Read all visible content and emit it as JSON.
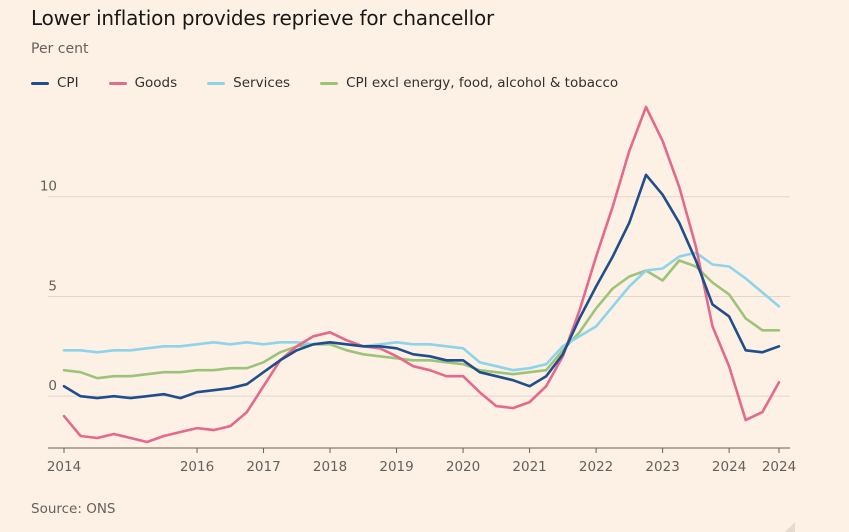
{
  "chart_data": {
    "type": "line",
    "title": "Lower inflation provides reprieve for chancellor",
    "subtitle": "Per cent",
    "source": "Source: ONS",
    "x_start": "2014-01",
    "x_end": "2024-10",
    "xticks": [
      "2014",
      "2016",
      "2017",
      "2018",
      "2019",
      "2020",
      "2021",
      "2022",
      "2023",
      "2024",
      "2024"
    ],
    "xtick_values": [
      "2014-01",
      "2016-01",
      "2017-01",
      "2018-01",
      "2019-01",
      "2020-01",
      "2021-01",
      "2022-01",
      "2023-01",
      "2024-01",
      "2024-10"
    ],
    "yticks": [
      0,
      5,
      10
    ],
    "ylim": [
      -2.6,
      14.6
    ],
    "series": [
      {
        "name": "CPI",
        "color": "#1f4e8a",
        "points": [
          [
            "2014-01",
            0.5
          ],
          [
            "2014-04",
            0.0
          ],
          [
            "2014-07",
            -0.1
          ],
          [
            "2014-10",
            0.0
          ],
          [
            "2015-01",
            -0.1
          ],
          [
            "2015-04",
            0.0
          ],
          [
            "2015-07",
            0.1
          ],
          [
            "2015-10",
            -0.1
          ],
          [
            "2016-01",
            0.2
          ],
          [
            "2016-04",
            0.3
          ],
          [
            "2016-07",
            0.4
          ],
          [
            "2016-10",
            0.6
          ],
          [
            "2017-01",
            1.2
          ],
          [
            "2017-04",
            1.8
          ],
          [
            "2017-07",
            2.3
          ],
          [
            "2017-10",
            2.6
          ],
          [
            "2018-01",
            2.7
          ],
          [
            "2018-04",
            2.6
          ],
          [
            "2018-07",
            2.5
          ],
          [
            "2018-10",
            2.5
          ],
          [
            "2019-01",
            2.4
          ],
          [
            "2019-04",
            2.1
          ],
          [
            "2019-07",
            2.0
          ],
          [
            "2019-10",
            1.8
          ],
          [
            "2020-01",
            1.8
          ],
          [
            "2020-04",
            1.2
          ],
          [
            "2020-07",
            1.0
          ],
          [
            "2020-10",
            0.8
          ],
          [
            "2021-01",
            0.5
          ],
          [
            "2021-04",
            1.0
          ],
          [
            "2021-07",
            2.1
          ],
          [
            "2021-10",
            3.9
          ],
          [
            "2022-01",
            5.5
          ],
          [
            "2022-04",
            7.0
          ],
          [
            "2022-07",
            8.7
          ],
          [
            "2022-10",
            11.1
          ],
          [
            "2023-01",
            10.1
          ],
          [
            "2023-04",
            8.7
          ],
          [
            "2023-07",
            6.8
          ],
          [
            "2023-10",
            4.6
          ],
          [
            "2024-01",
            4.0
          ],
          [
            "2024-04",
            2.3
          ],
          [
            "2024-07",
            2.2
          ],
          [
            "2024-10",
            2.5
          ]
        ]
      },
      {
        "name": "Goods",
        "color": "#e3698d",
        "points": [
          [
            "2014-01",
            -1.0
          ],
          [
            "2014-04",
            -2.0
          ],
          [
            "2014-07",
            -2.1
          ],
          [
            "2014-10",
            -1.9
          ],
          [
            "2015-01",
            -2.1
          ],
          [
            "2015-04",
            -2.3
          ],
          [
            "2015-07",
            -2.0
          ],
          [
            "2015-10",
            -1.8
          ],
          [
            "2016-01",
            -1.6
          ],
          [
            "2016-04",
            -1.7
          ],
          [
            "2016-07",
            -1.5
          ],
          [
            "2016-10",
            -0.8
          ],
          [
            "2017-01",
            0.5
          ],
          [
            "2017-04",
            1.8
          ],
          [
            "2017-07",
            2.5
          ],
          [
            "2017-10",
            3.0
          ],
          [
            "2018-01",
            3.2
          ],
          [
            "2018-04",
            2.8
          ],
          [
            "2018-07",
            2.5
          ],
          [
            "2018-10",
            2.4
          ],
          [
            "2019-01",
            2.0
          ],
          [
            "2019-04",
            1.5
          ],
          [
            "2019-07",
            1.3
          ],
          [
            "2019-10",
            1.0
          ],
          [
            "2020-01",
            1.0
          ],
          [
            "2020-04",
            0.2
          ],
          [
            "2020-07",
            -0.5
          ],
          [
            "2020-10",
            -0.6
          ],
          [
            "2021-01",
            -0.3
          ],
          [
            "2021-04",
            0.5
          ],
          [
            "2021-07",
            2.0
          ],
          [
            "2021-10",
            4.3
          ],
          [
            "2022-01",
            7.0
          ],
          [
            "2022-04",
            9.5
          ],
          [
            "2022-07",
            12.3
          ],
          [
            "2022-10",
            14.5
          ],
          [
            "2023-01",
            12.8
          ],
          [
            "2023-04",
            10.5
          ],
          [
            "2023-07",
            7.5
          ],
          [
            "2023-10",
            3.5
          ],
          [
            "2024-01",
            1.5
          ],
          [
            "2024-04",
            -1.2
          ],
          [
            "2024-07",
            -0.8
          ],
          [
            "2024-10",
            0.7
          ]
        ]
      },
      {
        "name": "Services",
        "color": "#8dd3ea",
        "points": [
          [
            "2014-01",
            2.3
          ],
          [
            "2014-04",
            2.3
          ],
          [
            "2014-07",
            2.2
          ],
          [
            "2014-10",
            2.3
          ],
          [
            "2015-01",
            2.3
          ],
          [
            "2015-04",
            2.4
          ],
          [
            "2015-07",
            2.5
          ],
          [
            "2015-10",
            2.5
          ],
          [
            "2016-01",
            2.6
          ],
          [
            "2016-04",
            2.7
          ],
          [
            "2016-07",
            2.6
          ],
          [
            "2016-10",
            2.7
          ],
          [
            "2017-01",
            2.6
          ],
          [
            "2017-04",
            2.7
          ],
          [
            "2017-07",
            2.7
          ],
          [
            "2017-10",
            2.6
          ],
          [
            "2018-01",
            2.7
          ],
          [
            "2018-04",
            2.6
          ],
          [
            "2018-07",
            2.5
          ],
          [
            "2018-10",
            2.6
          ],
          [
            "2019-01",
            2.7
          ],
          [
            "2019-04",
            2.6
          ],
          [
            "2019-07",
            2.6
          ],
          [
            "2019-10",
            2.5
          ],
          [
            "2020-01",
            2.4
          ],
          [
            "2020-04",
            1.7
          ],
          [
            "2020-07",
            1.5
          ],
          [
            "2020-10",
            1.3
          ],
          [
            "2021-01",
            1.4
          ],
          [
            "2021-04",
            1.6
          ],
          [
            "2021-07",
            2.5
          ],
          [
            "2021-10",
            3.0
          ],
          [
            "2022-01",
            3.5
          ],
          [
            "2022-04",
            4.5
          ],
          [
            "2022-07",
            5.5
          ],
          [
            "2022-10",
            6.3
          ],
          [
            "2023-01",
            6.4
          ],
          [
            "2023-04",
            7.0
          ],
          [
            "2023-07",
            7.2
          ],
          [
            "2023-10",
            6.6
          ],
          [
            "2024-01",
            6.5
          ],
          [
            "2024-04",
            5.9
          ],
          [
            "2024-07",
            5.2
          ],
          [
            "2024-10",
            4.5
          ]
        ]
      },
      {
        "name": "CPI excl energy, food, alcohol & tobacco",
        "color": "#9dc37a",
        "points": [
          [
            "2014-01",
            1.3
          ],
          [
            "2014-04",
            1.2
          ],
          [
            "2014-07",
            0.9
          ],
          [
            "2014-10",
            1.0
          ],
          [
            "2015-01",
            1.0
          ],
          [
            "2015-04",
            1.1
          ],
          [
            "2015-07",
            1.2
          ],
          [
            "2015-10",
            1.2
          ],
          [
            "2016-01",
            1.3
          ],
          [
            "2016-04",
            1.3
          ],
          [
            "2016-07",
            1.4
          ],
          [
            "2016-10",
            1.4
          ],
          [
            "2017-01",
            1.7
          ],
          [
            "2017-04",
            2.2
          ],
          [
            "2017-07",
            2.5
          ],
          [
            "2017-10",
            2.6
          ],
          [
            "2018-01",
            2.6
          ],
          [
            "2018-04",
            2.3
          ],
          [
            "2018-07",
            2.1
          ],
          [
            "2018-10",
            2.0
          ],
          [
            "2019-01",
            1.9
          ],
          [
            "2019-04",
            1.8
          ],
          [
            "2019-07",
            1.8
          ],
          [
            "2019-10",
            1.7
          ],
          [
            "2020-01",
            1.6
          ],
          [
            "2020-04",
            1.3
          ],
          [
            "2020-07",
            1.2
          ],
          [
            "2020-10",
            1.1
          ],
          [
            "2021-01",
            1.2
          ],
          [
            "2021-04",
            1.3
          ],
          [
            "2021-07",
            2.3
          ],
          [
            "2021-10",
            3.2
          ],
          [
            "2022-01",
            4.4
          ],
          [
            "2022-04",
            5.4
          ],
          [
            "2022-07",
            6.0
          ],
          [
            "2022-10",
            6.3
          ],
          [
            "2023-01",
            5.8
          ],
          [
            "2023-04",
            6.8
          ],
          [
            "2023-07",
            6.5
          ],
          [
            "2023-10",
            5.7
          ],
          [
            "2024-01",
            5.1
          ],
          [
            "2024-04",
            3.9
          ],
          [
            "2024-07",
            3.3
          ],
          [
            "2024-10",
            3.3
          ]
        ]
      }
    ]
  }
}
